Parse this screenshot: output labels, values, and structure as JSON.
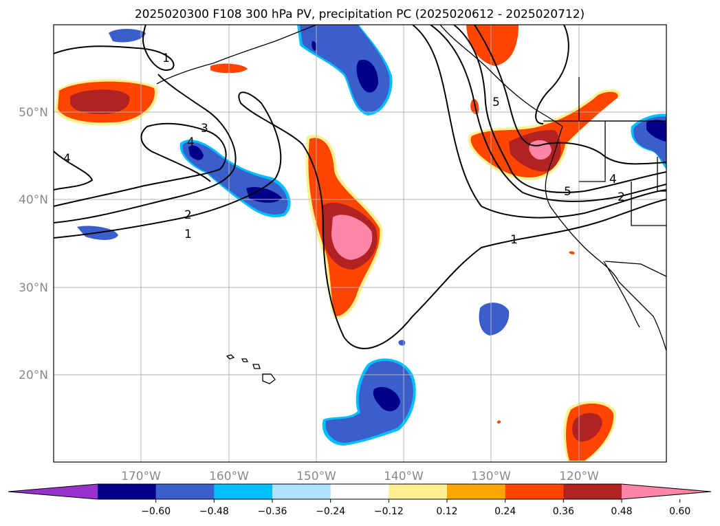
{
  "title": "2025020300 F108 300 hPa PV, precipitation PC (2025020612 - 2025020712)",
  "colors": {
    "frame": "#000000",
    "grid": "#b0b0b0",
    "coast": "#000000",
    "contour": "#000000"
  },
  "map": {
    "lon_range": [
      -180,
      -110
    ],
    "lat_range": [
      10,
      60
    ],
    "meridians": [
      -170,
      -160,
      -150,
      -140,
      -130,
      -120
    ],
    "parallels": [
      20,
      30,
      40,
      50
    ],
    "lon_labels": [
      "170°W",
      "160°W",
      "150°W",
      "140°W",
      "130°W",
      "120°W"
    ],
    "lat_labels": [
      "20°N",
      "30°N",
      "40°N",
      "50°N"
    ]
  },
  "pv_contour_labels": [
    "1",
    "2",
    "3",
    "4",
    "5"
  ],
  "colorbar": {
    "levels": [
      "−0.60",
      "−0.48",
      "−0.36",
      "−0.24",
      "−0.12",
      "0.12",
      "0.24",
      "0.36",
      "0.48",
      "0.60"
    ],
    "colors": [
      "#9932cc",
      "#00008b",
      "#3a5fcd",
      "#00bfff",
      "#b0e2ff",
      "#ffffff",
      "#fff08f",
      "#ffa500",
      "#ff4500",
      "#b22222",
      "#ff86a8"
    ]
  }
}
